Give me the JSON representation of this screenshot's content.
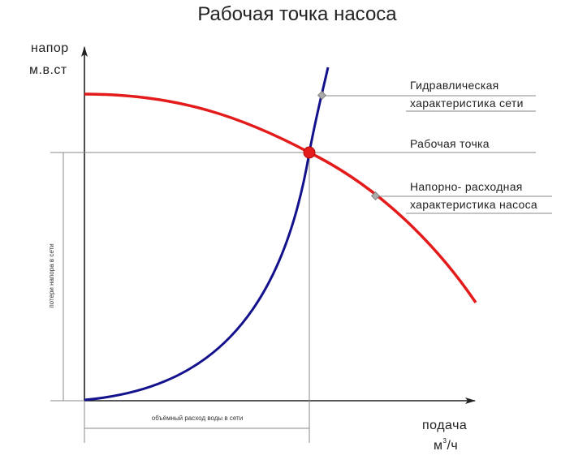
{
  "title": "Рабочая точка насоса",
  "y_axis": {
    "label_line1": "напор",
    "label_line2": "м.в.ст"
  },
  "x_axis": {
    "label_line1": "подача",
    "label_unit_base": "м",
    "label_unit_sup": "3",
    "label_unit_rest": "/ч"
  },
  "callouts": {
    "network_line1": "Гидравлическая",
    "network_line2": "характеристика сети",
    "operating_point": "Рабочая точка",
    "pump_line1": "Напорно- расходная",
    "pump_line2": "характеристика насоса"
  },
  "dimensions": {
    "head_loss": "потери напора в сети",
    "flow_volume": "объёмный расход воды в сети"
  },
  "colors": {
    "pump_curve": "#e31b1b",
    "network_curve": "#13128c",
    "operating_point": "#e31b1b",
    "axis": "#222222",
    "guide": "#888888"
  }
}
